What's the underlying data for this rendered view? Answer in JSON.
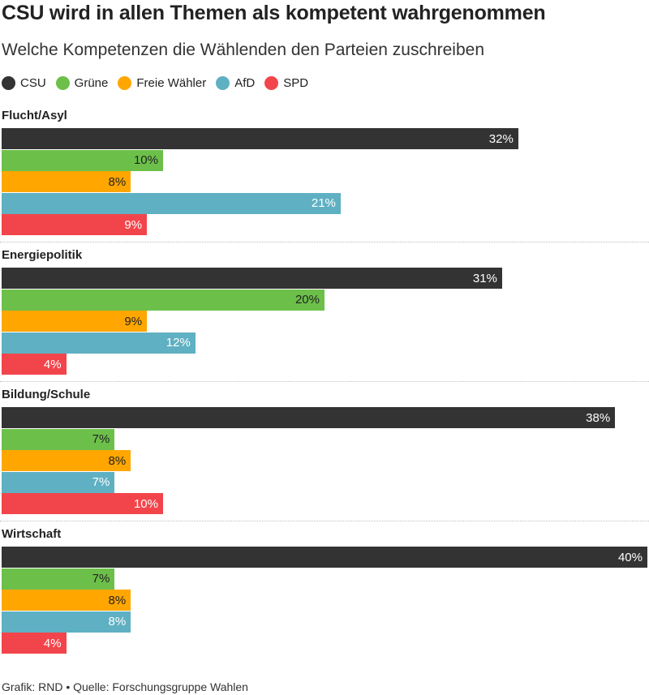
{
  "chart_data": {
    "type": "bar",
    "orientation": "horizontal",
    "title": "CSU wird in allen Themen als kompetent wahrgenommen",
    "subtitle": "Welche Kompetenzen die Wählenden den Parteien zuschreiben",
    "categories": [
      "Flucht/Asyl",
      "Energiepolitik",
      "Bildung/Schule",
      "Wirtschaft"
    ],
    "series": [
      {
        "name": "CSU",
        "color": "#333333",
        "label_color": "#ffffff",
        "values": [
          32,
          31,
          38,
          40
        ]
      },
      {
        "name": "Grüne",
        "color": "#6cc04a",
        "label_color": "#222222",
        "values": [
          10,
          20,
          7,
          7
        ]
      },
      {
        "name": "Freie Wähler",
        "color": "#ffa600",
        "label_color": "#222222",
        "values": [
          8,
          9,
          8,
          8
        ]
      },
      {
        "name": "AfD",
        "color": "#5fb0c2",
        "label_color": "#ffffff",
        "values": [
          21,
          12,
          7,
          8
        ]
      },
      {
        "name": "SPD",
        "color": "#f2454b",
        "label_color": "#ffffff",
        "values": [
          9,
          4,
          10,
          4
        ]
      }
    ],
    "value_suffix": "%",
    "xlim": [
      0,
      40
    ],
    "grid": false,
    "legend_position": "top-left"
  },
  "footer": "Grafik: RND • Quelle: Forschungsgruppe Wahlen"
}
